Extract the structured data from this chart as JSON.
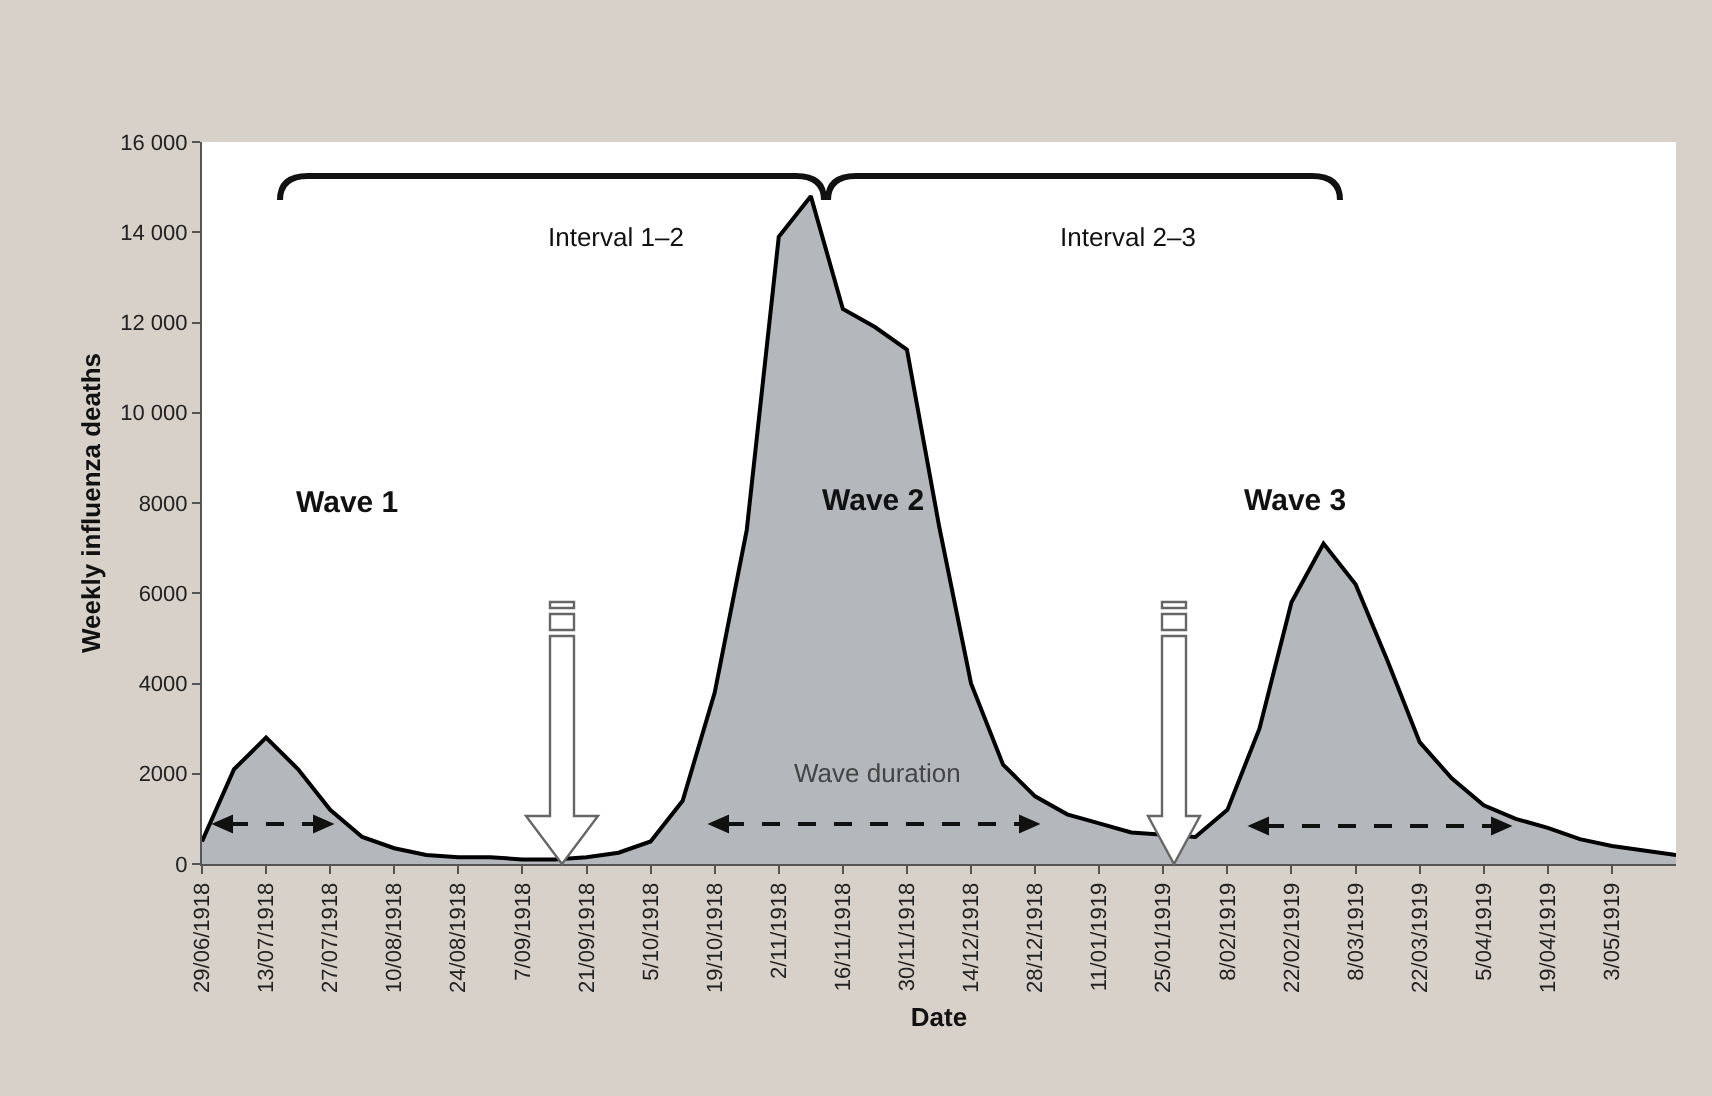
{
  "chart_data": {
    "type": "area",
    "xlabel": "Date",
    "ylabel": "Weekly influenza deaths",
    "x": [
      "1918-06-29",
      "1918-07-06",
      "1918-07-13",
      "1918-07-20",
      "1918-07-27",
      "1918-08-03",
      "1918-08-10",
      "1918-08-17",
      "1918-08-24",
      "1918-08-31",
      "1918-09-07",
      "1918-09-14",
      "1918-09-21",
      "1918-09-28",
      "1918-10-05",
      "1918-10-12",
      "1918-10-19",
      "1918-10-26",
      "1918-11-02",
      "1918-11-09",
      "1918-11-16",
      "1918-11-23",
      "1918-11-30",
      "1918-12-07",
      "1918-12-14",
      "1918-12-21",
      "1918-12-28",
      "1919-01-04",
      "1919-01-11",
      "1919-01-18",
      "1919-01-25",
      "1919-02-01",
      "1919-02-08",
      "1919-02-15",
      "1919-02-22",
      "1919-03-01",
      "1919-03-08",
      "1919-03-15",
      "1919-03-22",
      "1919-03-29",
      "1919-04-05",
      "1919-04-12",
      "1919-04-19",
      "1919-04-26",
      "1919-05-03",
      "1919-05-10",
      "1919-05-17"
    ],
    "series": [
      {
        "color": "#b4b8bc",
        "values": [
          500,
          2100,
          2800,
          2100,
          1200,
          600,
          350,
          200,
          150,
          150,
          100,
          100,
          150,
          250,
          500,
          1400,
          3800,
          7400,
          13900,
          14800,
          12300,
          11900,
          11400,
          7500,
          4000,
          2200,
          1500,
          1100,
          900,
          700,
          null,
          600,
          1200,
          3000,
          5800,
          7100,
          6200,
          4500,
          2700,
          1900,
          1300,
          1000,
          800,
          550,
          400,
          300,
          200
        ]
      }
    ],
    "xlim": [
      "1918-06-29",
      "1919-05-17"
    ],
    "xticks": [
      {
        "value": "1918-06-29",
        "label": "29/06/1918"
      },
      {
        "value": "1918-07-13",
        "label": "13/07/1918"
      },
      {
        "value": "1918-07-27",
        "label": "27/07/1918"
      },
      {
        "value": "1918-08-10",
        "label": "10/08/1918"
      },
      {
        "value": "1918-08-24",
        "label": "24/08/1918"
      },
      {
        "value": "1918-09-07",
        "label": "7/09/1918"
      },
      {
        "value": "1918-09-21",
        "label": "21/09/1918"
      },
      {
        "value": "1918-10-05",
        "label": "5/10/1918"
      },
      {
        "value": "1918-10-19",
        "label": "19/10/1918"
      },
      {
        "value": "1918-11-02",
        "label": "2/11/1918"
      },
      {
        "value": "1918-11-16",
        "label": "16/11/1918"
      },
      {
        "value": "1918-11-30",
        "label": "30/11/1918"
      },
      {
        "value": "1918-12-14",
        "label": "14/12/1918"
      },
      {
        "value": "1918-12-28",
        "label": "28/12/1918"
      },
      {
        "value": "1919-01-11",
        "label": "11/01/1919"
      },
      {
        "value": "1919-01-25",
        "label": "25/01/1919"
      },
      {
        "value": "1919-02-08",
        "label": "8/02/1919"
      },
      {
        "value": "1919-02-22",
        "label": "22/02/1919"
      },
      {
        "value": "1919-03-08",
        "label": "8/03/1919"
      },
      {
        "value": "1919-03-22",
        "label": "22/03/1919"
      },
      {
        "value": "1919-04-05",
        "label": "5/04/1919"
      },
      {
        "value": "1919-04-19",
        "label": "19/04/1919"
      },
      {
        "value": "1919-05-03",
        "label": "3/05/1919"
      }
    ],
    "ylim": [
      0,
      16000
    ],
    "yticks": [
      0,
      2000,
      4000,
      6000,
      8000,
      {
        "value": 10000,
        "label": "10 000"
      },
      {
        "value": 12000,
        "label": "12 000"
      },
      {
        "value": 14000,
        "label": "14 000"
      },
      {
        "value": 16000,
        "label": "16 000"
      }
    ],
    "annotations": [
      "Interval 1–2",
      "Interval 2–3",
      "Wave 1",
      "Wave 2",
      "Wave 3",
      "Wave duration"
    ],
    "marker": "none",
    "line_style": "solid"
  }
}
